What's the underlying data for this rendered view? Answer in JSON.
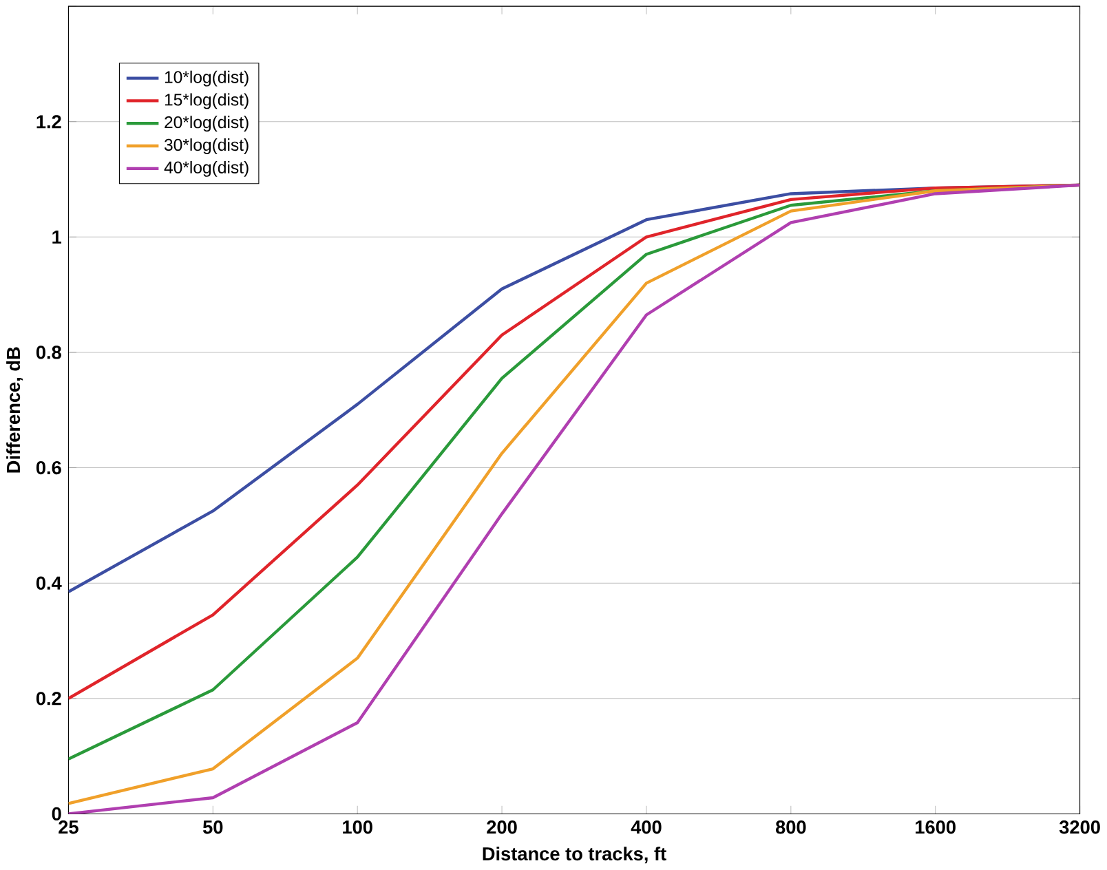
{
  "chart_data": {
    "type": "line",
    "xlabel": "Distance to tracks, ft",
    "ylabel": "Difference, dB",
    "x": [
      25,
      50,
      100,
      200,
      400,
      800,
      1600,
      3200
    ],
    "series": [
      {
        "name": "10*log(dist)",
        "color": "#3c4ea3",
        "values": [
          0.385,
          0.525,
          0.71,
          0.91,
          1.03,
          1.075,
          1.085,
          1.09
        ]
      },
      {
        "name": "15*log(dist)",
        "color": "#e0242a",
        "values": [
          0.2,
          0.345,
          0.57,
          0.83,
          1.0,
          1.065,
          1.085,
          1.09
        ]
      },
      {
        "name": "20*log(dist)",
        "color": "#2a9a3a",
        "values": [
          0.095,
          0.215,
          0.445,
          0.755,
          0.97,
          1.055,
          1.08,
          1.09
        ]
      },
      {
        "name": "30*log(dist)",
        "color": "#f0a02a",
        "values": [
          0.018,
          0.078,
          0.27,
          0.625,
          0.92,
          1.045,
          1.08,
          1.09
        ]
      },
      {
        "name": "40*log(dist)",
        "color": "#b03fb0",
        "values": [
          0.0,
          0.028,
          0.158,
          0.52,
          0.865,
          1.025,
          1.075,
          1.09
        ]
      }
    ],
    "log": "x",
    "xlim": [
      25,
      3200
    ],
    "ylim": [
      0,
      1.4
    ],
    "xticks": [
      25,
      50,
      100,
      200,
      400,
      800,
      1600,
      3200
    ],
    "yticks": [
      0,
      0.2,
      0.4,
      0.6,
      0.8,
      1,
      1.2,
      {
        "value": 1.4,
        "label": null
      }
    ],
    "grid": "y",
    "legend": "top left",
    "marker": "none",
    "line_style": "solid"
  }
}
